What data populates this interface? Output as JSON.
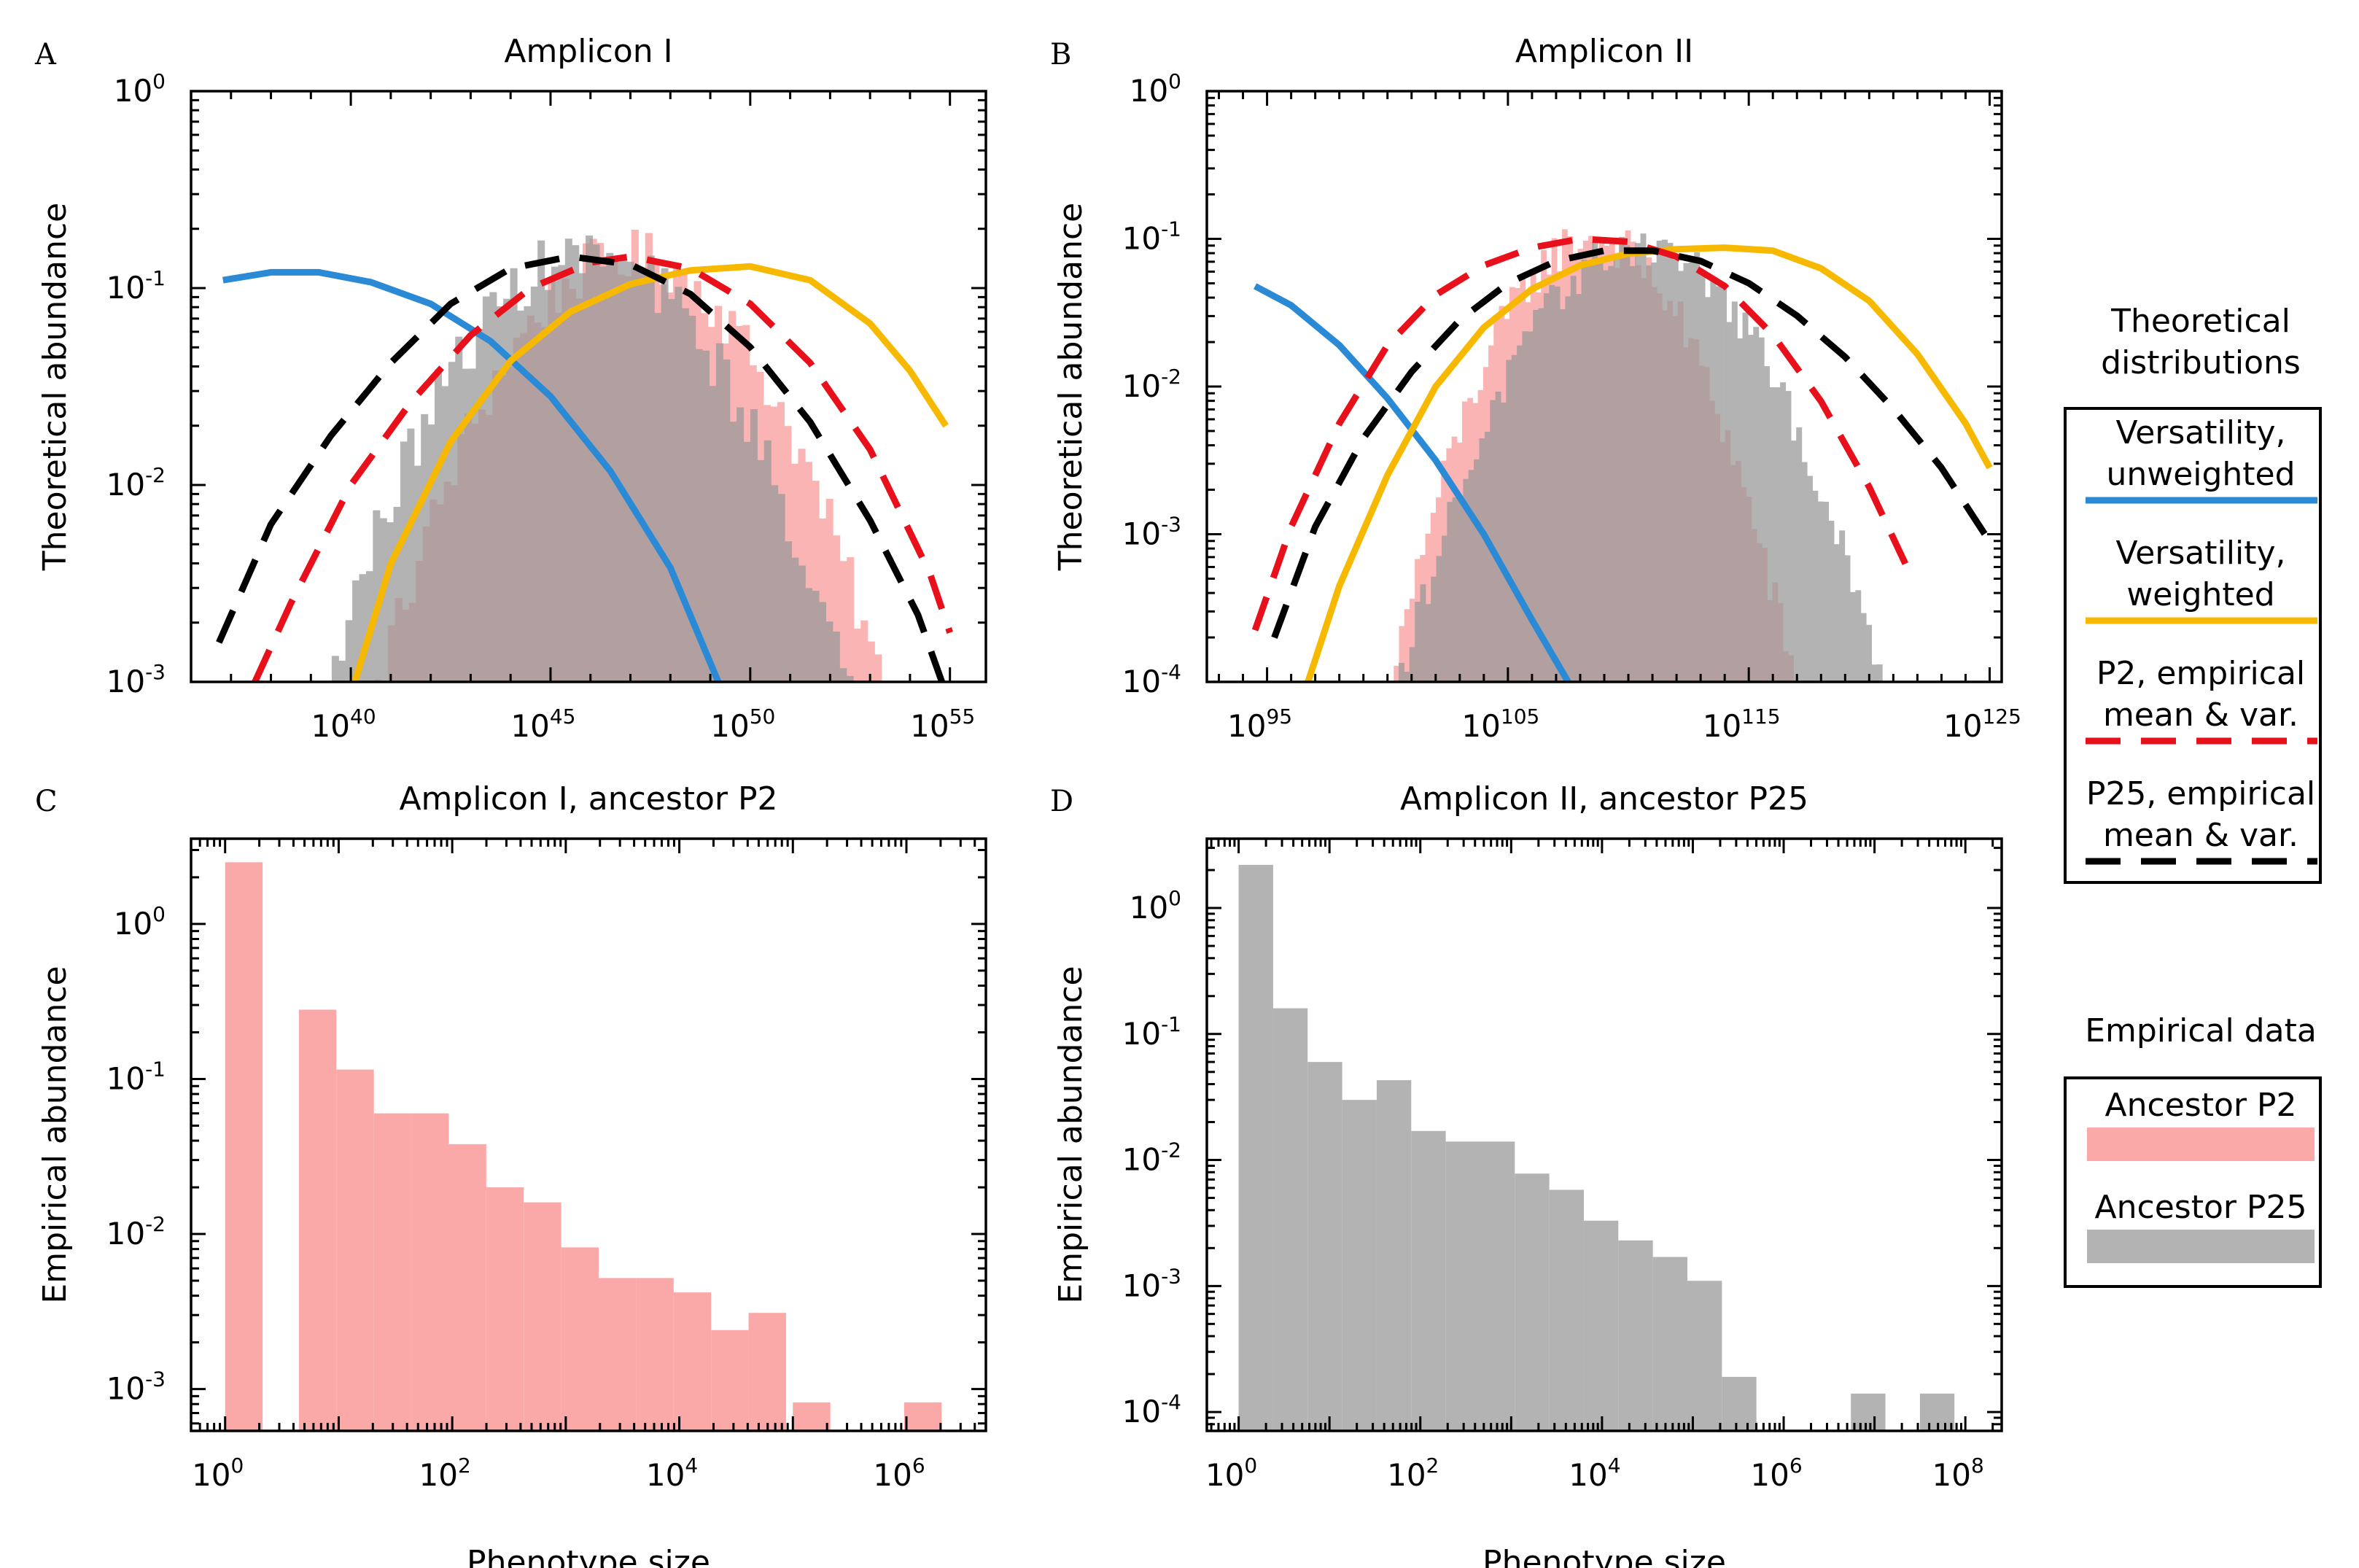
{
  "figure": {
    "legend": {
      "theoretical_heading": [
        "Theoretical",
        "distributions"
      ],
      "theoretical_items": [
        {
          "label": [
            "Versatility,",
            "unweighted"
          ],
          "color": "#2a8ad6",
          "dash": "solid"
        },
        {
          "label": [
            "Versatility,",
            "weighted"
          ],
          "color": "#f7b800",
          "dash": "solid"
        },
        {
          "label": [
            "P2, empirical",
            "mean & var."
          ],
          "color": "#e8101a",
          "dash": "dashed"
        },
        {
          "label": [
            "P25, empirical",
            "mean & var."
          ],
          "color": "#000000",
          "dash": "dashed"
        }
      ],
      "empirical_heading": "Empirical data",
      "empirical_items": [
        {
          "label": "Ancestor P2",
          "color": "#fba8a8"
        },
        {
          "label": "Ancestor P25",
          "color": "#b3b3b3"
        }
      ]
    }
  },
  "chart_data": [
    {
      "panel": "A",
      "type": "line",
      "title": "Amplicon I",
      "xlabel": "",
      "ylabel": "Theoretical abundance",
      "xscale": "log",
      "yscale": "log",
      "xlim_log10": [
        36.0,
        55.9
      ],
      "ylim_log10": [
        -3,
        0
      ],
      "x_ticks_log10": [
        40,
        45,
        50,
        55
      ],
      "y_ticks_log10": [
        -3,
        -2,
        -1,
        0
      ],
      "series": [
        {
          "key": "unweighted",
          "color": "#2a8ad6",
          "dash": "solid",
          "x_log10": [
            36.8,
            38.0,
            39.2,
            40.5,
            42.0,
            43.5,
            45.0,
            46.5,
            48.0,
            49.2
          ],
          "y_log10": [
            -0.96,
            -0.92,
            -0.92,
            -0.97,
            -1.08,
            -1.27,
            -1.55,
            -1.93,
            -2.42,
            -3.0
          ]
        },
        {
          "key": "weighted",
          "color": "#f7b800",
          "dash": "solid",
          "x_log10": [
            40.1,
            41.0,
            42.5,
            44.0,
            45.5,
            47.0,
            48.5,
            50.0,
            51.5,
            53.0,
            54.0,
            54.9
          ],
          "y_log10": [
            -3.0,
            -2.4,
            -1.78,
            -1.37,
            -1.12,
            -0.98,
            -0.91,
            -0.89,
            -0.96,
            -1.18,
            -1.42,
            -1.7
          ]
        },
        {
          "key": "p2",
          "color": "#e8101a",
          "dash": "dashed",
          "x_log10": [
            37.6,
            38.5,
            40.0,
            41.5,
            43.0,
            44.5,
            46.0,
            47.0,
            48.5,
            50.0,
            51.5,
            53.0,
            54.5,
            55.0
          ],
          "y_log10": [
            -3.0,
            -2.6,
            -2.0,
            -1.58,
            -1.24,
            -1.0,
            -0.87,
            -0.84,
            -0.9,
            -1.08,
            -1.38,
            -1.82,
            -2.45,
            -2.75
          ]
        },
        {
          "key": "p25",
          "color": "#000000",
          "dash": "dashed",
          "x_log10": [
            36.7,
            38.0,
            39.5,
            41.0,
            42.5,
            44.0,
            45.5,
            47.0,
            48.5,
            50.0,
            51.5,
            53.0,
            54.2,
            54.8
          ],
          "y_log10": [
            -2.8,
            -2.2,
            -1.75,
            -1.38,
            -1.08,
            -0.9,
            -0.84,
            -0.88,
            -1.03,
            -1.3,
            -1.68,
            -2.18,
            -2.66,
            -3.0
          ]
        }
      ],
      "histograms": [
        {
          "key": "p2",
          "color": "#fba8a8",
          "opacity": 0.85,
          "x_from": 37.8,
          "x_to": 55.2,
          "bins": 100,
          "center": 47.0,
          "peak_log10": -0.84,
          "width": 6.0,
          "noise": 0.14
        },
        {
          "key": "p25",
          "color": "#9a9a9a",
          "opacity": 0.75,
          "x_from": 36.6,
          "x_to": 55.5,
          "bins": 110,
          "center": 45.9,
          "peak_log10": -0.84,
          "width": 6.2,
          "noise": 0.15
        }
      ]
    },
    {
      "panel": "B",
      "type": "line",
      "title": "Amplicon II",
      "xlabel": "",
      "ylabel": "Theoretical abundance",
      "xscale": "log",
      "yscale": "log",
      "xlim_log10": [
        92.5,
        125.5
      ],
      "ylim_log10": [
        -4,
        0
      ],
      "x_ticks_log10": [
        95,
        105,
        115,
        125
      ],
      "y_ticks_log10": [
        -4,
        -3,
        -2,
        -1,
        0
      ],
      "series": [
        {
          "key": "unweighted",
          "color": "#2a8ad6",
          "dash": "solid",
          "x_log10": [
            94.5,
            96.0,
            98.0,
            100.0,
            102.0,
            104.0,
            106.0,
            107.5
          ],
          "y_log10": [
            -1.32,
            -1.45,
            -1.72,
            -2.08,
            -2.5,
            -3.0,
            -3.58,
            -4.0
          ]
        },
        {
          "key": "weighted",
          "color": "#f7b800",
          "dash": "solid",
          "x_log10": [
            96.7,
            98.0,
            100.0,
            102.0,
            104.0,
            106.0,
            108.0,
            110.0,
            112.0,
            114.0,
            116.0,
            118.0,
            120.0,
            122.0,
            124.0,
            125.0
          ],
          "y_log10": [
            -4.0,
            -3.35,
            -2.6,
            -2.0,
            -1.6,
            -1.34,
            -1.18,
            -1.1,
            -1.07,
            -1.06,
            -1.08,
            -1.2,
            -1.42,
            -1.78,
            -2.25,
            -2.55
          ]
        },
        {
          "key": "p2",
          "color": "#e8101a",
          "dash": "dashed",
          "x_log10": [
            94.5,
            96.0,
            98.0,
            100.0,
            102.0,
            104.0,
            106.0,
            108.0,
            110.0,
            112.0,
            114.0,
            116.0,
            118.0,
            120.0,
            121.5
          ],
          "y_log10": [
            -3.65,
            -2.95,
            -2.25,
            -1.72,
            -1.38,
            -1.18,
            -1.06,
            -1.0,
            -1.02,
            -1.12,
            -1.32,
            -1.65,
            -2.1,
            -2.68,
            -3.2
          ]
        },
        {
          "key": "p25",
          "color": "#000000",
          "dash": "dashed",
          "x_log10": [
            95.3,
            97.0,
            99.0,
            101.0,
            103.0,
            105.0,
            107.0,
            109.0,
            111.0,
            113.0,
            115.0,
            117.0,
            119.0,
            121.0,
            123.0,
            125.0
          ],
          "y_log10": [
            -3.7,
            -2.95,
            -2.35,
            -1.9,
            -1.55,
            -1.3,
            -1.15,
            -1.08,
            -1.08,
            -1.15,
            -1.3,
            -1.52,
            -1.8,
            -2.15,
            -2.55,
            -3.05
          ]
        }
      ],
      "histograms": [
        {
          "key": "p2",
          "color": "#fba8a8",
          "opacity": 0.85,
          "x_from": 94.8,
          "x_to": 121.0,
          "bins": 120,
          "center": 108.5,
          "peak_log10": -1.0,
          "width": 6.8,
          "noise": 0.16
        },
        {
          "key": "p25",
          "color": "#9a9a9a",
          "opacity": 0.75,
          "x_from": 96.0,
          "x_to": 125.0,
          "bins": 130,
          "center": 110.5,
          "peak_log10": -1.05,
          "width": 8.2,
          "noise": 0.14
        }
      ]
    },
    {
      "panel": "C",
      "type": "bar",
      "title": "Amplicon I, ancestor P2",
      "xlabel": "Phenotype size",
      "ylabel": "Empirical abundance",
      "xscale": "log",
      "yscale": "log",
      "xlim_log10": [
        -0.3,
        6.7
      ],
      "ylim_log10": [
        -3.27,
        0.55
      ],
      "x_ticks_log10": [
        0,
        2,
        4,
        6
      ],
      "y_ticks_log10": [
        -3,
        -2,
        -1,
        0
      ],
      "color": "#fba8a8",
      "bars": [
        {
          "x0": 0.0,
          "x1": 0.33,
          "y": 2.5
        },
        {
          "x0": 0.65,
          "x1": 0.98,
          "y": 0.28
        },
        {
          "x0": 0.98,
          "x1": 1.31,
          "y": 0.115
        },
        {
          "x0": 1.31,
          "x1": 1.64,
          "y": 0.06
        },
        {
          "x0": 1.64,
          "x1": 1.97,
          "y": 0.06
        },
        {
          "x0": 1.97,
          "x1": 2.3,
          "y": 0.038
        },
        {
          "x0": 2.3,
          "x1": 2.63,
          "y": 0.02
        },
        {
          "x0": 2.63,
          "x1": 2.96,
          "y": 0.016
        },
        {
          "x0": 2.96,
          "x1": 3.29,
          "y": 0.0082
        },
        {
          "x0": 3.29,
          "x1": 3.62,
          "y": 0.0052
        },
        {
          "x0": 3.62,
          "x1": 3.95,
          "y": 0.0052
        },
        {
          "x0": 3.95,
          "x1": 4.28,
          "y": 0.0042
        },
        {
          "x0": 4.28,
          "x1": 4.61,
          "y": 0.0024
        },
        {
          "x0": 4.61,
          "x1": 4.94,
          "y": 0.0031
        },
        {
          "x0": 5.0,
          "x1": 5.33,
          "y": 0.00082
        },
        {
          "x0": 5.98,
          "x1": 6.31,
          "y": 0.00082
        }
      ]
    },
    {
      "panel": "D",
      "type": "bar",
      "title": "Amplicon II, ancestor P25",
      "xlabel": "Phenotype size",
      "ylabel": "Empirical abundance",
      "xscale": "log",
      "yscale": "log",
      "xlim_log10": [
        -0.35,
        8.4
      ],
      "ylim_log10": [
        -4.15,
        0.55
      ],
      "x_ticks_log10": [
        0,
        2,
        4,
        6,
        8
      ],
      "y_ticks_log10": [
        -4,
        -3,
        -2,
        -1,
        0
      ],
      "color": "#b3b3b3",
      "bars": [
        {
          "x0": 0.0,
          "x1": 0.38,
          "y": 2.2
        },
        {
          "x0": 0.38,
          "x1": 0.76,
          "y": 0.16
        },
        {
          "x0": 0.76,
          "x1": 1.14,
          "y": 0.06
        },
        {
          "x0": 1.14,
          "x1": 1.52,
          "y": 0.03
        },
        {
          "x0": 1.52,
          "x1": 1.9,
          "y": 0.043
        },
        {
          "x0": 1.9,
          "x1": 2.28,
          "y": 0.017
        },
        {
          "x0": 2.28,
          "x1": 2.66,
          "y": 0.014
        },
        {
          "x0": 2.66,
          "x1": 3.04,
          "y": 0.014
        },
        {
          "x0": 3.04,
          "x1": 3.42,
          "y": 0.0078
        },
        {
          "x0": 3.42,
          "x1": 3.8,
          "y": 0.0058
        },
        {
          "x0": 3.8,
          "x1": 4.18,
          "y": 0.0033
        },
        {
          "x0": 4.18,
          "x1": 4.56,
          "y": 0.0023
        },
        {
          "x0": 4.56,
          "x1": 4.94,
          "y": 0.0017
        },
        {
          "x0": 4.94,
          "x1": 5.32,
          "y": 0.0011
        },
        {
          "x0": 5.32,
          "x1": 5.7,
          "y": 0.00019
        },
        {
          "x0": 6.74,
          "x1": 7.12,
          "y": 0.00014
        },
        {
          "x0": 7.5,
          "x1": 7.88,
          "y": 0.00014
        }
      ]
    }
  ]
}
